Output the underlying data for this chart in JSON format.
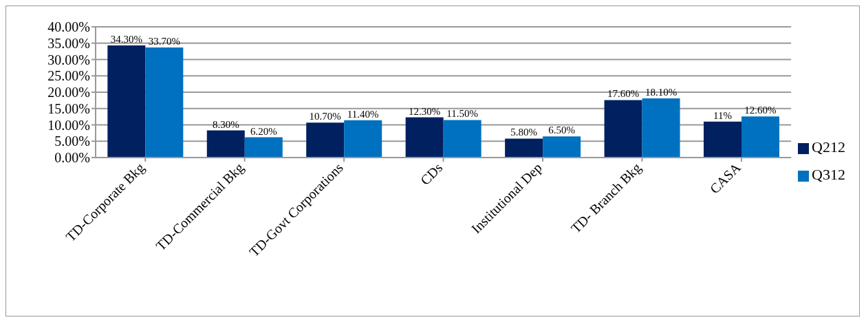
{
  "chart_data": {
    "type": "bar",
    "categories": [
      "TD-Corporate Bkg",
      "TD-Commercial Bkg",
      "TD-Govt Corporations",
      "CDs",
      "Institutional Dep",
      "TD- Branch Bkg",
      "CASA"
    ],
    "series": [
      {
        "name": "Q212",
        "color": "#002060",
        "values": [
          34.3,
          8.3,
          10.7,
          12.3,
          5.8,
          17.6,
          11
        ],
        "value_labels": [
          "34.30%",
          "8.30%",
          "10.70%",
          "12.30%",
          "5.80%",
          "17.60%",
          "11%"
        ]
      },
      {
        "name": "Q312",
        "color": "#0070c0",
        "values": [
          33.7,
          6.2,
          11.4,
          11.5,
          6.5,
          18.1,
          12.6
        ],
        "value_labels": [
          "33.70%",
          "6.20%",
          "11.40%",
          "11.50%",
          "6.50%",
          "18.10%",
          "12.60%"
        ]
      }
    ],
    "ylim": [
      0,
      40
    ],
    "yticks": [
      {
        "value": 0,
        "label": "0.00%"
      },
      {
        "value": 5,
        "label": "5.00%"
      },
      {
        "value": 10,
        "label": "10.00%"
      },
      {
        "value": 15,
        "label": "15.00%"
      },
      {
        "value": 20,
        "label": "20.00%"
      },
      {
        "value": 25,
        "label": "25.00%"
      },
      {
        "value": 30,
        "label": "30.00%"
      },
      {
        "value": 35,
        "label": "35.00%"
      },
      {
        "value": 40,
        "label": "40.00%"
      }
    ],
    "grid": "y",
    "legend": "right"
  }
}
